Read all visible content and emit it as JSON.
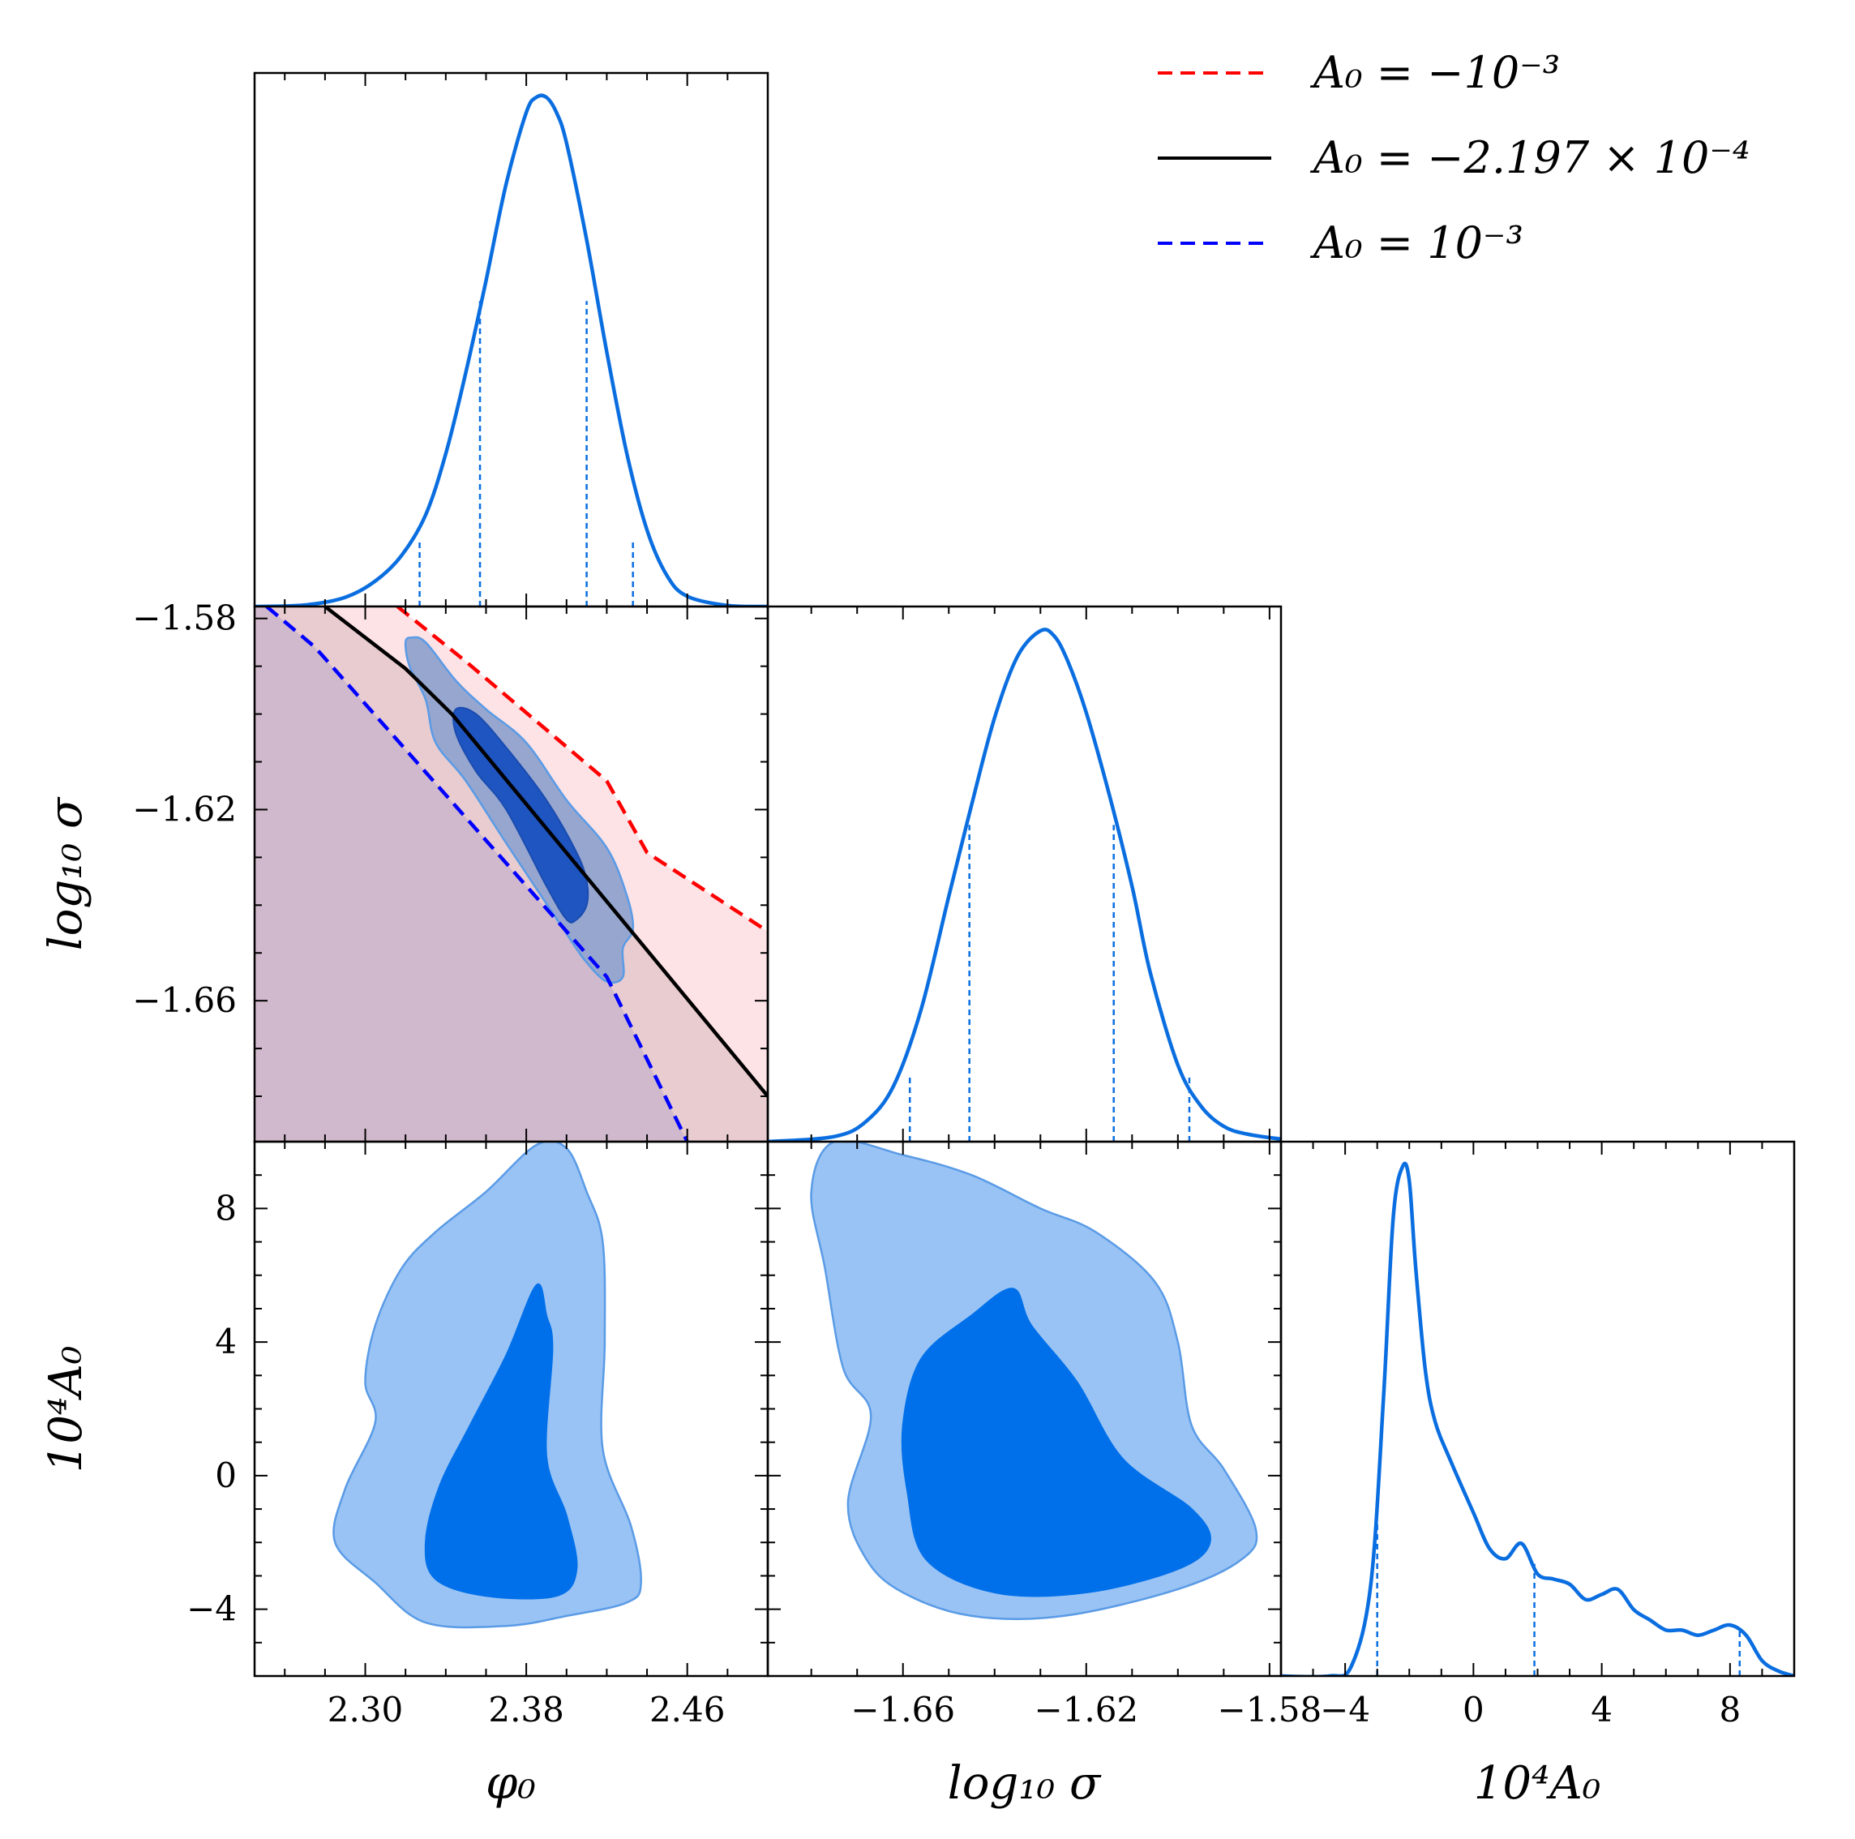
{
  "chart_data": {
    "type": "corner",
    "parameters": [
      "phi0",
      "log10_sigma",
      "A0_x1e4"
    ],
    "axis_labels": {
      "phi0": "φ₀",
      "log10_sigma": "log₁₀ σ",
      "A0_x1e4": "10⁴A₀"
    },
    "ranges": {
      "phi0": [
        2.245,
        2.5
      ],
      "log10_sigma": [
        -1.6895,
        -1.5775
      ],
      "A0_x1e4": [
        -6,
        10
      ]
    },
    "ticks": {
      "phi0": {
        "values": [
          2.3,
          2.38,
          2.46
        ],
        "labels": [
          "2.30",
          "2.38",
          "2.46"
        ]
      },
      "log10_sigma": {
        "values": [
          -1.66,
          -1.62,
          -1.58
        ],
        "labels": [
          "−1.66",
          "−1.62",
          "−1.58"
        ]
      },
      "A0_x1e4": {
        "values": [
          -4,
          0,
          4,
          8
        ],
        "labels": [
          "−4",
          "0",
          "4",
          "8"
        ]
      }
    },
    "colors": {
      "main": "#0a6ee0",
      "contour_outer": "#99c3f4",
      "contour_inner": "#0070ea",
      "contour_edge": "#5a9be6",
      "prior_red": "#ff0000",
      "prior_black": "#000000",
      "prior_blue": "#0000ff"
    },
    "marginals": {
      "phi0": {
        "x": [
          2.245,
          2.27,
          2.29,
          2.305,
          2.318,
          2.33,
          2.34,
          2.35,
          2.36,
          2.37,
          2.38,
          2.385,
          2.39,
          2.395,
          2.4,
          2.41,
          2.42,
          2.43,
          2.44,
          2.45,
          2.46,
          2.48,
          2.5
        ],
        "density": [
          0.0,
          0.003,
          0.018,
          0.05,
          0.1,
          0.18,
          0.3,
          0.46,
          0.64,
          0.83,
          0.97,
          1.0,
          1.0,
          0.97,
          0.91,
          0.72,
          0.5,
          0.3,
          0.15,
          0.06,
          0.02,
          0.002,
          0.0
        ],
        "quantiles": [
          {
            "x": 2.327,
            "h": 0.13
          },
          {
            "x": 2.357,
            "h": 0.6
          },
          {
            "x": 2.41,
            "h": 0.6
          },
          {
            "x": 2.433,
            "h": 0.13
          }
        ]
      },
      "log10_sigma": {
        "x": [
          -1.6895,
          -1.675,
          -1.668,
          -1.662,
          -1.656,
          -1.65,
          -1.645,
          -1.64,
          -1.635,
          -1.63,
          -1.627,
          -1.624,
          -1.62,
          -1.615,
          -1.61,
          -1.606,
          -1.6,
          -1.595,
          -1.59,
          -1.585,
          -1.5775
        ],
        "density": [
          0.0,
          0.01,
          0.04,
          0.11,
          0.26,
          0.48,
          0.66,
          0.83,
          0.95,
          1.0,
          0.99,
          0.94,
          0.84,
          0.68,
          0.5,
          0.33,
          0.15,
          0.07,
          0.03,
          0.015,
          0.005
        ],
        "quantiles": [
          {
            "x": -1.6585,
            "h": 0.13
          },
          {
            "x": -1.6455,
            "h": 0.62
          },
          {
            "x": -1.614,
            "h": 0.62
          },
          {
            "x": -1.5975,
            "h": 0.13
          }
        ]
      },
      "A0_x1e4": {
        "x": [
          -6,
          -4.5,
          -3.8,
          -3.2,
          -2.8,
          -2.5,
          -2.2,
          -2.0,
          -1.8,
          -1.5,
          -1.2,
          -0.7,
          0,
          0.5,
          1.0,
          1.5,
          2.0,
          2.5,
          3.0,
          3.5,
          4.0,
          4.5,
          5.0,
          5.5,
          6.0,
          6.5,
          7.0,
          7.5,
          8.0,
          8.5,
          9.0,
          9.5,
          10
        ],
        "density": [
          0.0,
          0.0,
          0.02,
          0.18,
          0.55,
          0.9,
          1.0,
          0.97,
          0.8,
          0.6,
          0.5,
          0.42,
          0.32,
          0.25,
          0.23,
          0.26,
          0.2,
          0.19,
          0.18,
          0.15,
          0.16,
          0.17,
          0.13,
          0.11,
          0.09,
          0.09,
          0.08,
          0.09,
          0.1,
          0.08,
          0.03,
          0.01,
          0.0
        ],
        "quantiles": [
          {
            "x": -3.0,
            "h": 0.3
          },
          {
            "x": 1.9,
            "h": 0.22
          },
          {
            "x": 8.3,
            "h": 0.09
          }
        ]
      }
    },
    "joint_phi0_log10sigma": {
      "outer": [
        [
          2.323,
          -1.584
        ],
        [
          2.33,
          -1.585
        ],
        [
          2.345,
          -1.593
        ],
        [
          2.36,
          -1.599
        ],
        [
          2.38,
          -1.606
        ],
        [
          2.4,
          -1.618
        ],
        [
          2.42,
          -1.628
        ],
        [
          2.43,
          -1.638
        ],
        [
          2.433,
          -1.645
        ],
        [
          2.428,
          -1.649
        ],
        [
          2.428,
          -1.655
        ],
        [
          2.42,
          -1.656
        ],
        [
          2.41,
          -1.652
        ],
        [
          2.4,
          -1.646
        ],
        [
          2.37,
          -1.627
        ],
        [
          2.35,
          -1.614
        ],
        [
          2.335,
          -1.606
        ],
        [
          2.33,
          -1.597
        ],
        [
          2.322,
          -1.59
        ],
        [
          2.32,
          -1.585
        ]
      ],
      "inner": [
        [
          2.345,
          -1.599
        ],
        [
          2.355,
          -1.6
        ],
        [
          2.37,
          -1.607
        ],
        [
          2.39,
          -1.618
        ],
        [
          2.405,
          -1.629
        ],
        [
          2.41,
          -1.635
        ],
        [
          2.41,
          -1.64
        ],
        [
          2.405,
          -1.643
        ],
        [
          2.4,
          -1.643
        ],
        [
          2.39,
          -1.636
        ],
        [
          2.37,
          -1.62
        ],
        [
          2.355,
          -1.612
        ],
        [
          2.345,
          -1.604
        ]
      ],
      "prior_lines": [
        {
          "name": "A0 = -10^-3",
          "style": "dashed",
          "points": [
            [
              2.316,
              -1.5775
            ],
            [
              2.35,
              -1.589
            ],
            [
              2.42,
              -1.614
            ],
            [
              2.44,
              -1.629
            ],
            [
              2.5,
              -1.6455
            ]
          ]
        },
        {
          "name": "A0 = -2.197e-4",
          "style": "solid",
          "points": [
            [
              2.28,
              -1.5775
            ],
            [
              2.32,
              -1.5905
            ],
            [
              2.343,
              -1.6
            ],
            [
              2.5,
              -1.68
            ]
          ]
        },
        {
          "name": "A0 = 10^-3",
          "style": "dashed",
          "points": [
            [
              2.251,
              -1.5775
            ],
            [
              2.275,
              -1.586
            ],
            [
              2.42,
              -1.655
            ],
            [
              2.46,
              -1.6895
            ]
          ]
        }
      ]
    },
    "joint_phi0_A0": {
      "outer": [
        [
          2.385,
          9.9
        ],
        [
          2.4,
          9.8
        ],
        [
          2.41,
          8.5
        ],
        [
          2.418,
          7.0
        ],
        [
          2.419,
          4.0
        ],
        [
          2.418,
          0.8
        ],
        [
          2.432,
          -1.5
        ],
        [
          2.437,
          -3.2
        ],
        [
          2.43,
          -3.8
        ],
        [
          2.4,
          -4.2
        ],
        [
          2.37,
          -4.5
        ],
        [
          2.33,
          -4.4
        ],
        [
          2.305,
          -3.2
        ],
        [
          2.285,
          -2.0
        ],
        [
          2.29,
          -0.4
        ],
        [
          2.305,
          1.6
        ],
        [
          2.3,
          2.8
        ],
        [
          2.305,
          4.5
        ],
        [
          2.318,
          6.2
        ],
        [
          2.335,
          7.3
        ],
        [
          2.36,
          8.5
        ]
      ],
      "inner": [
        [
          2.385,
          5.7
        ],
        [
          2.39,
          4.8
        ],
        [
          2.393,
          3.8
        ],
        [
          2.39,
          0.6
        ],
        [
          2.4,
          -1.2
        ],
        [
          2.405,
          -2.8
        ],
        [
          2.395,
          -3.6
        ],
        [
          2.36,
          -3.6
        ],
        [
          2.335,
          -3.1
        ],
        [
          2.33,
          -2.0
        ],
        [
          2.337,
          -0.3
        ],
        [
          2.352,
          1.5
        ],
        [
          2.37,
          3.6
        ]
      ]
    },
    "joint_log10sigma_A0": {
      "outer": [
        [
          -1.675,
          10.0
        ],
        [
          -1.66,
          9.6
        ],
        [
          -1.645,
          9.0
        ],
        [
          -1.63,
          8.0
        ],
        [
          -1.618,
          7.3
        ],
        [
          -1.605,
          5.8
        ],
        [
          -1.6,
          4.0
        ],
        [
          -1.597,
          1.5
        ],
        [
          -1.59,
          0.2
        ],
        [
          -1.583,
          -1.6
        ],
        [
          -1.586,
          -2.5
        ],
        [
          -1.6,
          -3.4
        ],
        [
          -1.625,
          -4.2
        ],
        [
          -1.645,
          -4.2
        ],
        [
          -1.66,
          -3.5
        ],
        [
          -1.668,
          -2.5
        ],
        [
          -1.672,
          -0.8
        ],
        [
          -1.667,
          1.8
        ],
        [
          -1.673,
          3.2
        ],
        [
          -1.677,
          6.2
        ],
        [
          -1.68,
          8.5
        ]
      ],
      "inner": [
        [
          -1.636,
          5.6
        ],
        [
          -1.632,
          4.5
        ],
        [
          -1.622,
          2.8
        ],
        [
          -1.612,
          0.5
        ],
        [
          -1.597,
          -1.0
        ],
        [
          -1.593,
          -2.0
        ],
        [
          -1.6,
          -2.8
        ],
        [
          -1.62,
          -3.5
        ],
        [
          -1.64,
          -3.5
        ],
        [
          -1.655,
          -2.5
        ],
        [
          -1.659,
          -0.5
        ],
        [
          -1.66,
          1.5
        ],
        [
          -1.656,
          3.5
        ],
        [
          -1.645,
          4.8
        ]
      ]
    },
    "legend": {
      "position": "top-right",
      "entries": [
        {
          "label": "A₀ = −10⁻³",
          "color": "#ff0000",
          "style": "dashed"
        },
        {
          "label": "A₀ = −2.197 × 10⁻⁴",
          "color": "#000000",
          "style": "solid"
        },
        {
          "label": "A₀ = 10⁻³",
          "color": "#0000ff",
          "style": "dashed"
        }
      ]
    }
  }
}
